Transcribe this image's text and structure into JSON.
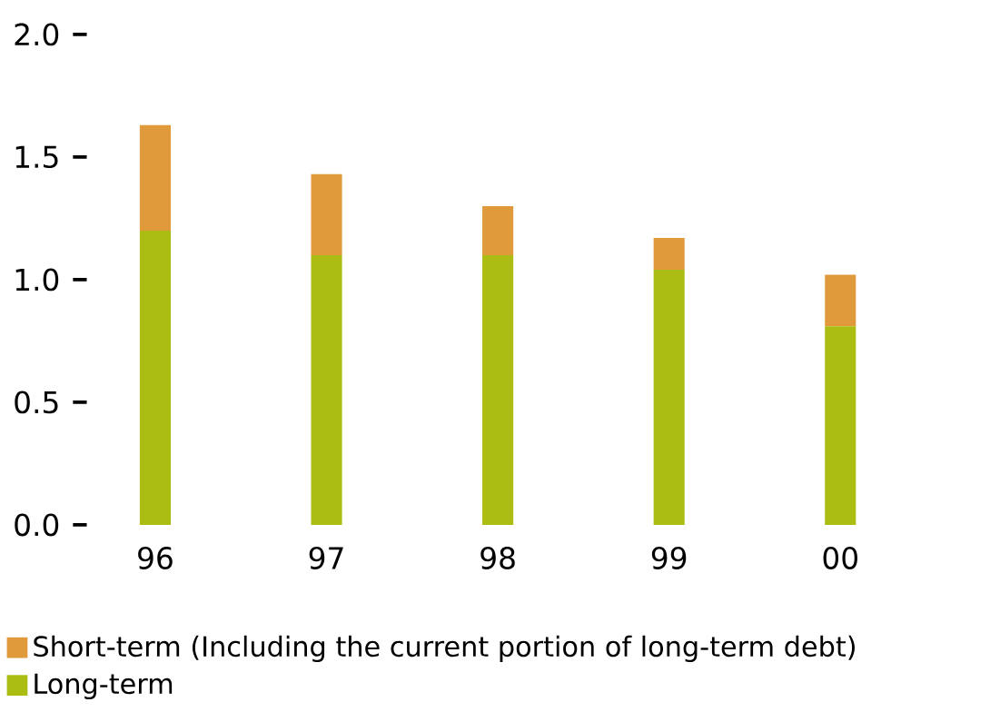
{
  "chart_data": {
    "type": "bar",
    "stacked": true,
    "categories": [
      "96",
      "97",
      "98",
      "99",
      "00"
    ],
    "series": [
      {
        "name": "Long-term",
        "color": "#abbc12",
        "values": [
          1.2,
          1.1,
          1.1,
          1.04,
          0.81
        ]
      },
      {
        "name": "Short-term (Including the current portion of long-term debt)",
        "color": "#e09a3c",
        "values": [
          0.43,
          0.33,
          0.2,
          0.13,
          0.21
        ]
      }
    ],
    "ylim": [
      0,
      2.0
    ],
    "yticks": [
      {
        "value": 0,
        "label": "0.0"
      },
      {
        "value": 0.5,
        "label": "0.5"
      },
      {
        "value": 1.0,
        "label": "1.0"
      },
      {
        "value": 1.5,
        "label": "1.5"
      },
      {
        "value": 2.0,
        "label": "2.0"
      }
    ],
    "grid": false,
    "legend": "bottom left"
  }
}
